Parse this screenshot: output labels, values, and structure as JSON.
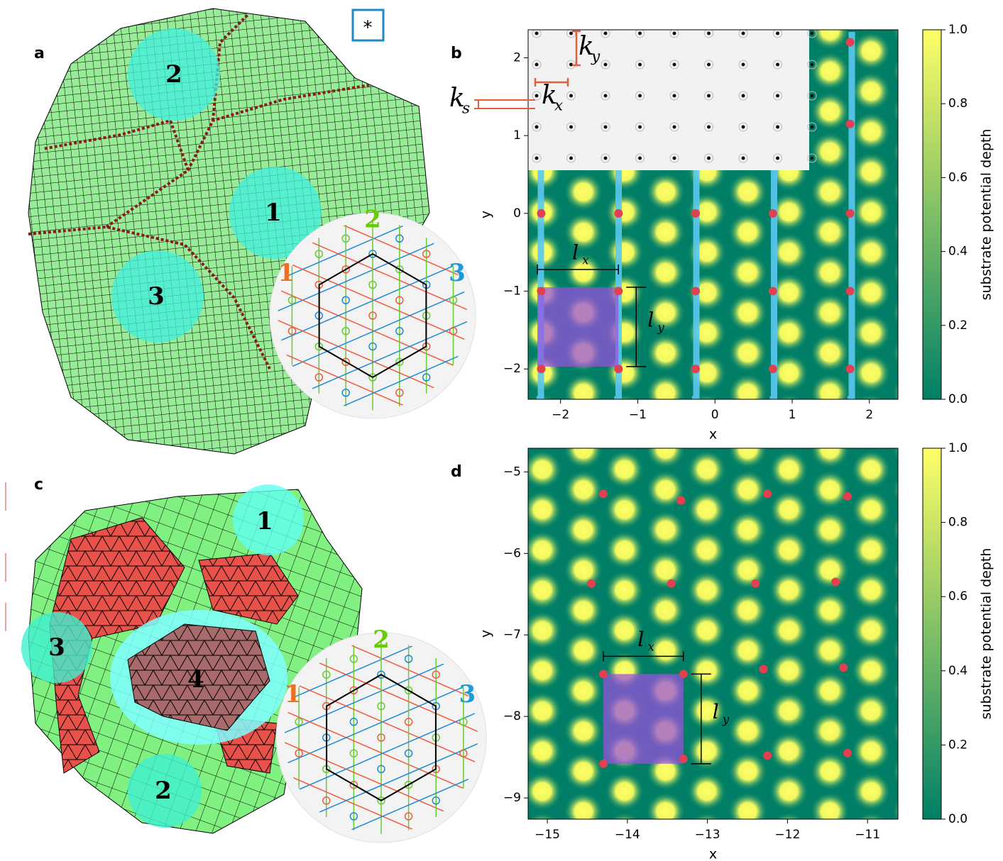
{
  "illustrations": {
    "a": {
      "label": "a",
      "marker": "*",
      "regions": [
        "2",
        "1",
        "3"
      ],
      "inset_labels": [
        "1",
        "2",
        "3"
      ]
    },
    "c": {
      "label": "c",
      "regions": [
        "1",
        "3",
        "4",
        "2"
      ],
      "inset_labels": [
        "1",
        "2",
        "3"
      ]
    }
  },
  "chart_data": [
    {
      "type": "heatmap",
      "label": "b",
      "xlabel": "x",
      "ylabel": "y",
      "xlim": [
        -2.42,
        2.37
      ],
      "ylim": [
        -2.39,
        2.36
      ],
      "xticks": [
        {
          "value": -2,
          "label": "−2"
        },
        {
          "value": -1,
          "label": "−1"
        },
        0,
        1,
        2
      ],
      "yticks": [
        {
          "value": -2,
          "label": "−2"
        },
        {
          "value": -1,
          "label": "−1"
        },
        0,
        1,
        2
      ],
      "colorbar": {
        "label": "substrate potential depth",
        "lim": [
          0,
          1
        ],
        "ticks": [
          {
            "value": 0,
            "label": "0.0"
          },
          {
            "value": 0.2,
            "label": "0.2"
          },
          {
            "value": 0.4,
            "label": "0.4"
          },
          {
            "value": 0.6,
            "label": "0.6"
          },
          {
            "value": 0.8,
            "label": "0.8"
          },
          {
            "value": 1,
            "label": "1.0"
          }
        ]
      },
      "points": {
        "color": "#e0404f",
        "x": [
          -2.25,
          -1.25,
          -0.25,
          0.75,
          1.75,
          -2.25,
          -1.25,
          -0.25,
          0.75,
          1.75,
          -2.25,
          -1.25,
          -0.25,
          0.75,
          1.75,
          1.75,
          1.75
        ],
        "y": [
          0,
          0,
          0,
          0,
          0,
          -1,
          -1,
          -1,
          -1,
          -1,
          -2,
          -2,
          -2,
          -2,
          -2,
          2.2,
          1.15
        ]
      },
      "annotations": [
        {
          "text": "k",
          "sub": "y"
        },
        {
          "text": "k",
          "sub": "x"
        },
        {
          "text": "k",
          "sub": "s"
        },
        {
          "text": "l",
          "sub": "x"
        },
        {
          "text": "l",
          "sub": "y"
        }
      ]
    },
    {
      "type": "heatmap",
      "label": "d",
      "xlabel": "x",
      "ylabel": "y",
      "xlim": [
        -15.24,
        -10.62
      ],
      "ylim": [
        -9.26,
        -4.71
      ],
      "xticks": [
        {
          "value": -15,
          "label": "−15"
        },
        {
          "value": -14,
          "label": "−14"
        },
        {
          "value": -13,
          "label": "−13"
        },
        {
          "value": -12,
          "label": "−12"
        },
        {
          "value": -11,
          "label": "−11"
        }
      ],
      "yticks": [
        {
          "value": -9,
          "label": "−9"
        },
        {
          "value": -8,
          "label": "−8"
        },
        {
          "value": -7,
          "label": "−7"
        },
        {
          "value": -6,
          "label": "−6"
        },
        {
          "value": -5,
          "label": "−5"
        }
      ],
      "colorbar": {
        "label": "substrate potential depth",
        "lim": [
          0,
          1
        ],
        "ticks": [
          {
            "value": 0,
            "label": "0.0"
          },
          {
            "value": 0.2,
            "label": "0.2"
          },
          {
            "value": 0.4,
            "label": "0.4"
          },
          {
            "value": 0.6,
            "label": "0.6"
          },
          {
            "value": 0.8,
            "label": "0.8"
          },
          {
            "value": 1,
            "label": "1.0"
          }
        ]
      },
      "points": {
        "color": "#e0404f",
        "x": [
          -14.3,
          -13.33,
          -12.25,
          -11.25,
          -14.45,
          -13.45,
          -12.4,
          -11.4,
          -12.3,
          -11.3,
          -12.25,
          -11.25,
          -14.3,
          -13.3,
          -14.3,
          -13.3
        ],
        "y": [
          -5.27,
          -5.35,
          -5.27,
          -5.3,
          -6.37,
          -6.37,
          -6.37,
          -6.35,
          -7.42,
          -7.4,
          -8.48,
          -8.45,
          -7.48,
          -7.48,
          -8.58,
          -8.52
        ]
      },
      "annotations": [
        {
          "text": "l",
          "sub": "x"
        },
        {
          "text": "l",
          "sub": "y"
        }
      ]
    }
  ]
}
